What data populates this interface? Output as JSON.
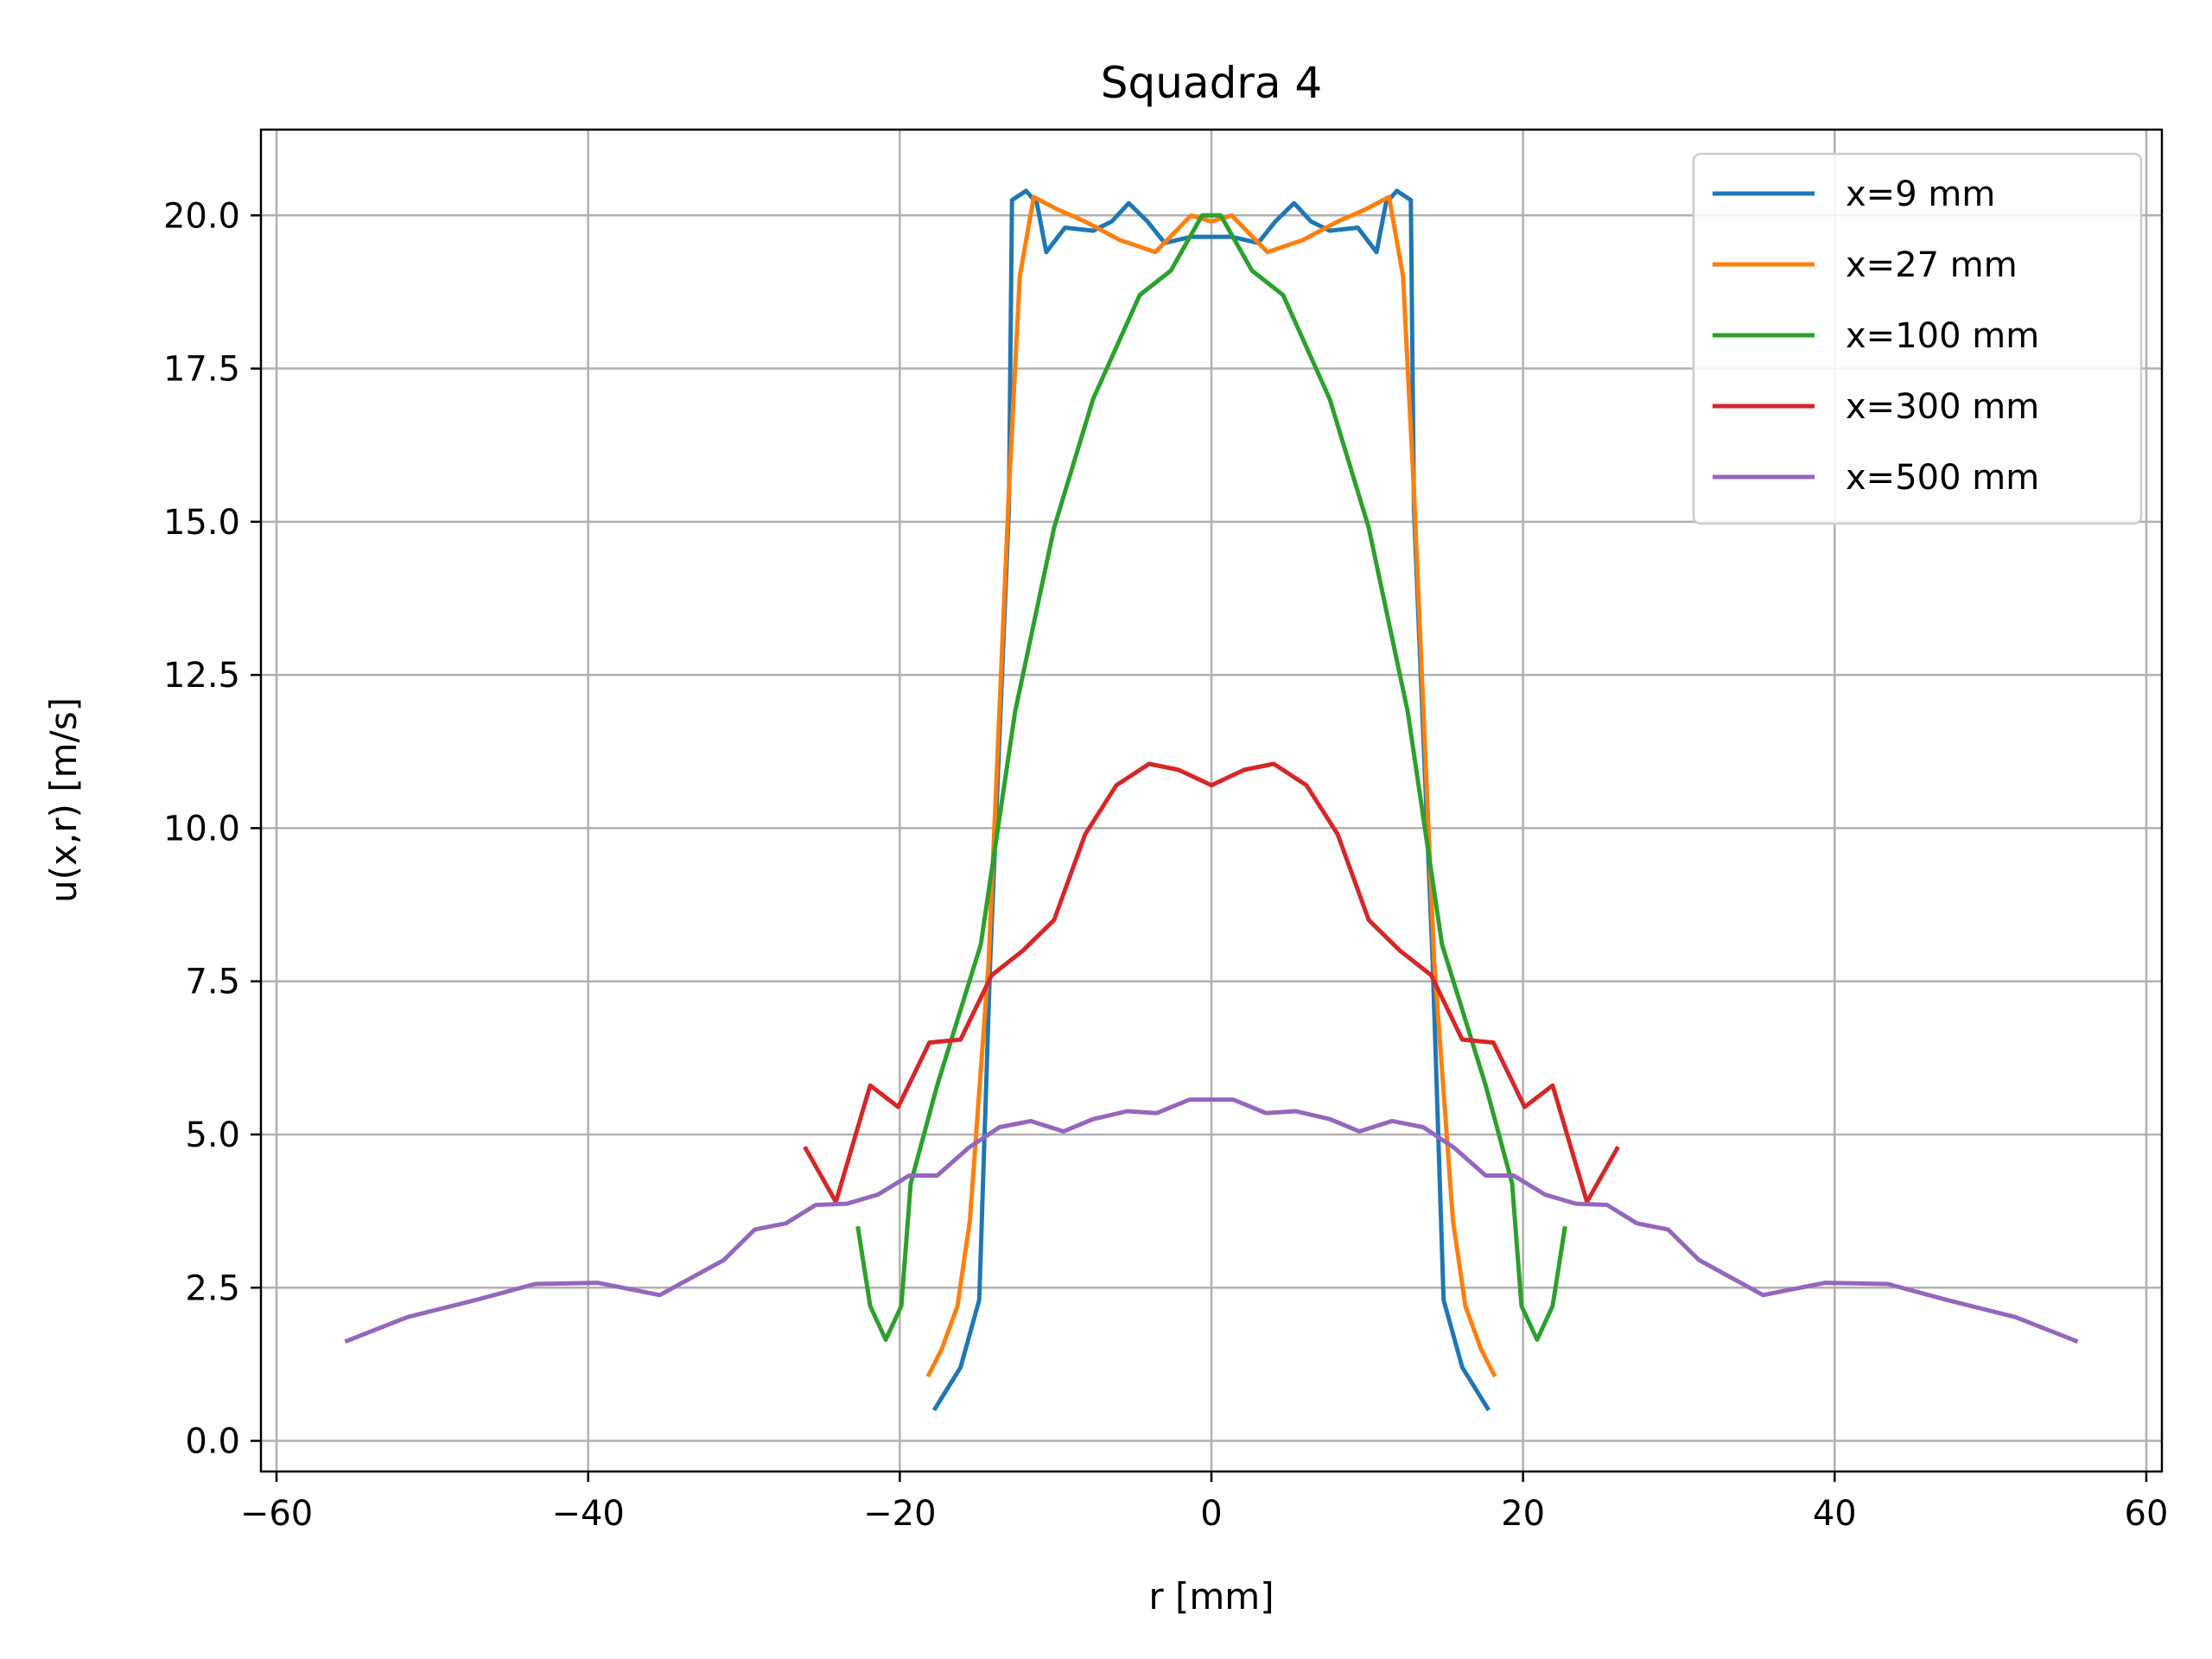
{
  "chart_data": {
    "type": "line",
    "title": "Squadra 4",
    "xlabel": "r [mm]",
    "ylabel": "u(x,r) [m/s]",
    "xlim": [
      -61,
      61
    ],
    "ylim": [
      -0.5,
      21.4
    ],
    "xticks": [
      -60,
      -40,
      -20,
      0,
      20,
      40,
      60
    ],
    "yticks": [
      0.0,
      2.5,
      5.0,
      7.5,
      10.0,
      12.5,
      15.0,
      17.5,
      20.0
    ],
    "xtick_labels": [
      "−60",
      "−40",
      "−20",
      "0",
      "20",
      "40",
      "60"
    ],
    "ytick_labels": [
      "0.0",
      "2.5",
      "5.0",
      "7.5",
      "10.0",
      "12.5",
      "15.0",
      "17.5",
      "20.0"
    ],
    "grid": true,
    "legend_position": "top-right",
    "series": [
      {
        "name": "x=9 mm",
        "color": "#1f77b4",
        "points": [
          [
            -17.8,
            0.5
          ],
          [
            -16.1,
            1.2
          ],
          [
            -14.9,
            2.3
          ],
          [
            -14.2,
            7.8
          ],
          [
            -13.0,
            15.2
          ],
          [
            -12.8,
            20.25
          ],
          [
            -11.9,
            20.4
          ],
          [
            -11.2,
            20.2
          ],
          [
            -10.6,
            19.4
          ],
          [
            -9.4,
            19.8
          ],
          [
            -7.6,
            19.75
          ],
          [
            -6.4,
            19.9
          ],
          [
            -5.3,
            20.2
          ],
          [
            -4.1,
            19.9
          ],
          [
            -3.0,
            19.55
          ],
          [
            -1.3,
            19.65
          ],
          [
            0,
            19.65
          ],
          [
            1.3,
            19.65
          ],
          [
            3.0,
            19.55
          ],
          [
            4.1,
            19.9
          ],
          [
            5.3,
            20.2
          ],
          [
            6.4,
            19.9
          ],
          [
            7.6,
            19.75
          ],
          [
            9.4,
            19.8
          ],
          [
            10.6,
            19.4
          ],
          [
            11.2,
            20.2
          ],
          [
            11.9,
            20.4
          ],
          [
            12.8,
            20.25
          ],
          [
            13.0,
            15.2
          ],
          [
            14.2,
            7.8
          ],
          [
            14.9,
            2.3
          ],
          [
            16.1,
            1.2
          ],
          [
            17.8,
            0.5
          ]
        ]
      },
      {
        "name": "x=27 mm",
        "color": "#ff7f0e",
        "points": [
          [
            -18.2,
            1.05
          ],
          [
            -17.3,
            1.5
          ],
          [
            -16.3,
            2.2
          ],
          [
            -15.5,
            3.6
          ],
          [
            -14.3,
            7.8
          ],
          [
            -13.0,
            15.5
          ],
          [
            -12.3,
            19.0
          ],
          [
            -11.4,
            20.3
          ],
          [
            -9.9,
            20.1
          ],
          [
            -8.1,
            19.9
          ],
          [
            -5.9,
            19.6
          ],
          [
            -3.6,
            19.4
          ],
          [
            -1.3,
            20.0
          ],
          [
            0,
            19.9
          ],
          [
            1.3,
            20.0
          ],
          [
            3.6,
            19.4
          ],
          [
            5.9,
            19.6
          ],
          [
            8.1,
            19.9
          ],
          [
            9.9,
            20.1
          ],
          [
            11.4,
            20.3
          ],
          [
            12.3,
            19.0
          ],
          [
            13.0,
            15.5
          ],
          [
            14.3,
            7.8
          ],
          [
            15.5,
            3.6
          ],
          [
            16.3,
            2.2
          ],
          [
            17.3,
            1.5
          ],
          [
            18.2,
            1.05
          ]
        ]
      },
      {
        "name": "x=100 mm",
        "color": "#2ca02c",
        "points": [
          [
            -22.7,
            3.5
          ],
          [
            -21.9,
            2.2
          ],
          [
            -20.9,
            1.65
          ],
          [
            -19.9,
            2.2
          ],
          [
            -19.3,
            4.2
          ],
          [
            -17.6,
            5.8
          ],
          [
            -14.8,
            8.1
          ],
          [
            -12.6,
            11.9
          ],
          [
            -10.1,
            14.9
          ],
          [
            -7.6,
            17.0
          ],
          [
            -4.6,
            18.7
          ],
          [
            -2.6,
            19.1
          ],
          [
            -0.6,
            20.0
          ],
          [
            0,
            20.0
          ],
          [
            0.6,
            20.0
          ],
          [
            2.6,
            19.1
          ],
          [
            4.6,
            18.7
          ],
          [
            7.6,
            17.0
          ],
          [
            10.1,
            14.9
          ],
          [
            12.6,
            11.9
          ],
          [
            14.8,
            8.1
          ],
          [
            17.6,
            5.8
          ],
          [
            19.3,
            4.2
          ],
          [
            19.9,
            2.2
          ],
          [
            20.9,
            1.65
          ],
          [
            21.9,
            2.2
          ],
          [
            22.7,
            3.5
          ]
        ]
      },
      {
        "name": "x=300 mm",
        "color": "#d62728",
        "points": [
          [
            -26.1,
            4.8
          ],
          [
            -24.1,
            3.9
          ],
          [
            -21.9,
            5.8
          ],
          [
            -20.1,
            5.45
          ],
          [
            -18.1,
            6.5
          ],
          [
            -16.1,
            6.55
          ],
          [
            -14.1,
            7.6
          ],
          [
            -12.1,
            8.0
          ],
          [
            -10.1,
            8.5
          ],
          [
            -8.1,
            9.9
          ],
          [
            -6.1,
            10.7
          ],
          [
            -4.0,
            11.05
          ],
          [
            -2.1,
            10.95
          ],
          [
            0,
            10.7
          ],
          [
            2.1,
            10.95
          ],
          [
            4.0,
            11.05
          ],
          [
            6.1,
            10.7
          ],
          [
            8.1,
            9.9
          ],
          [
            10.1,
            8.5
          ],
          [
            12.1,
            8.0
          ],
          [
            14.1,
            7.6
          ],
          [
            16.1,
            6.55
          ],
          [
            18.1,
            6.5
          ],
          [
            20.1,
            5.45
          ],
          [
            21.9,
            5.8
          ],
          [
            24.1,
            3.9
          ],
          [
            26.1,
            4.8
          ]
        ]
      },
      {
        "name": "x=500 mm",
        "color": "#9467bd",
        "points": [
          [
            -55.6,
            1.62
          ],
          [
            -51.6,
            2.02
          ],
          [
            -47.2,
            2.3
          ],
          [
            -43.4,
            2.56
          ],
          [
            -39.4,
            2.58
          ],
          [
            -35.4,
            2.38
          ],
          [
            -31.3,
            2.95
          ],
          [
            -29.3,
            3.45
          ],
          [
            -27.3,
            3.55
          ],
          [
            -25.4,
            3.85
          ],
          [
            -23.4,
            3.87
          ],
          [
            -21.4,
            4.02
          ],
          [
            -19.4,
            4.33
          ],
          [
            -17.6,
            4.33
          ],
          [
            -15.6,
            4.78
          ],
          [
            -13.6,
            5.12
          ],
          [
            -11.6,
            5.22
          ],
          [
            -9.5,
            5.05
          ],
          [
            -7.6,
            5.25
          ],
          [
            -5.4,
            5.38
          ],
          [
            -3.5,
            5.35
          ],
          [
            -1.4,
            5.57
          ],
          [
            0,
            5.57
          ],
          [
            1.4,
            5.57
          ],
          [
            3.5,
            5.35
          ],
          [
            5.4,
            5.38
          ],
          [
            7.6,
            5.25
          ],
          [
            9.5,
            5.05
          ],
          [
            11.6,
            5.22
          ],
          [
            13.6,
            5.12
          ],
          [
            15.6,
            4.78
          ],
          [
            17.6,
            4.33
          ],
          [
            19.4,
            4.33
          ],
          [
            21.4,
            4.02
          ],
          [
            23.4,
            3.87
          ],
          [
            25.4,
            3.85
          ],
          [
            27.3,
            3.55
          ],
          [
            29.3,
            3.45
          ],
          [
            31.3,
            2.95
          ],
          [
            35.4,
            2.38
          ],
          [
            39.4,
            2.58
          ],
          [
            43.4,
            2.56
          ],
          [
            47.2,
            2.3
          ],
          [
            51.6,
            2.02
          ],
          [
            55.6,
            1.62
          ]
        ]
      }
    ]
  }
}
